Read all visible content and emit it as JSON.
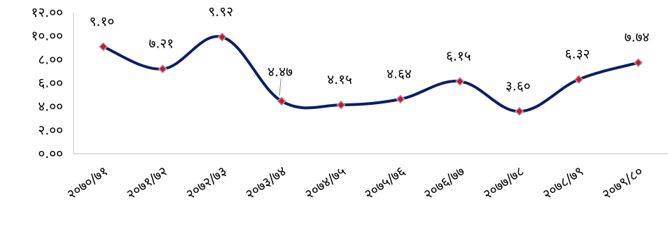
{
  "chart_data": {
    "type": "line",
    "categories": [
      "२०७०/७१",
      "२०७१/७२",
      "२०७२/७३",
      "२०७३/७४",
      "२०७४/७५",
      "२०७५/७६",
      "२०७६/७७",
      "२०७७/७८",
      "२०७८/७९",
      "२०७९/८०"
    ],
    "series": [
      {
        "values": [
          9.1,
          7.21,
          9.92,
          4.47,
          4.15,
          4.64,
          6.15,
          3.6,
          6.32,
          7.74
        ],
        "value_labels": [
          "९.१०",
          "७.२१",
          "९.९२",
          "४.४७",
          "४.१५",
          "४.६४",
          "६.१५",
          "३.६०",
          "६.३२",
          "७.७४"
        ],
        "line_color": "#0b1f66",
        "marker_color": "#e0101a",
        "marker_border": "#9aa7c4"
      }
    ],
    "ylim": [
      0,
      12
    ],
    "ytick_values": [
      0,
      2,
      4,
      6,
      8,
      10,
      12
    ],
    "ytick_labels": [
      "०.००",
      "२.००",
      "४.००",
      "६.००",
      "८.००",
      "१०.००",
      "१२.००"
    ],
    "grid": false,
    "legend": "none",
    "xlabel": "",
    "ylabel": "",
    "title": ""
  }
}
